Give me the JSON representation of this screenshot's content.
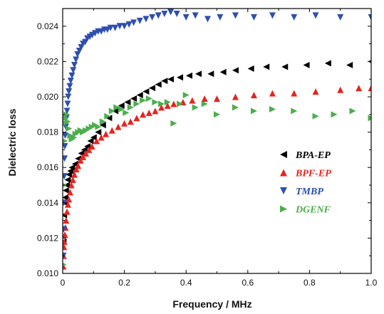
{
  "chart_data": {
    "type": "scatter",
    "title": "",
    "xlabel": "Frequency / MHz",
    "ylabel": "Dielectric loss",
    "xlim": [
      0,
      1.0
    ],
    "ylim": [
      0.01,
      0.025
    ],
    "x_ticks": [
      0.0,
      0.2,
      0.4,
      0.6,
      0.8,
      1.0
    ],
    "x_tick_labels": [
      "0",
      "0.2",
      "0.4",
      "0.6",
      "0.8",
      "1.0"
    ],
    "y_ticks": [
      0.01,
      0.012,
      0.014,
      0.016,
      0.018,
      0.02,
      0.022,
      0.024
    ],
    "y_tick_labels": [
      "0.010",
      "0.012",
      "0.014",
      "0.016",
      "0.018",
      "0.020",
      "0.022",
      "0.024"
    ],
    "grid": false,
    "legend_position": "center-right",
    "series": [
      {
        "name": "BPA-EP",
        "color": "#000000",
        "marker": "triangle-left",
        "points": [
          [
            0.002,
            0.0118
          ],
          [
            0.004,
            0.0133
          ],
          [
            0.006,
            0.014
          ],
          [
            0.008,
            0.0143
          ],
          [
            0.01,
            0.0147
          ],
          [
            0.013,
            0.015
          ],
          [
            0.016,
            0.0153
          ],
          [
            0.02,
            0.0156
          ],
          [
            0.025,
            0.0158
          ],
          [
            0.03,
            0.016
          ],
          [
            0.04,
            0.0162
          ],
          [
            0.05,
            0.0165
          ],
          [
            0.06,
            0.0168
          ],
          [
            0.07,
            0.017
          ],
          [
            0.08,
            0.0172
          ],
          [
            0.09,
            0.0175
          ],
          [
            0.1,
            0.0177
          ],
          [
            0.115,
            0.018
          ],
          [
            0.13,
            0.0184
          ],
          [
            0.15,
            0.0188
          ],
          [
            0.17,
            0.0192
          ],
          [
            0.19,
            0.0195
          ],
          [
            0.21,
            0.0197
          ],
          [
            0.23,
            0.0199
          ],
          [
            0.25,
            0.0201
          ],
          [
            0.27,
            0.0203
          ],
          [
            0.29,
            0.0205
          ],
          [
            0.31,
            0.0207
          ],
          [
            0.33,
            0.0209
          ],
          [
            0.35,
            0.021
          ],
          [
            0.38,
            0.0211
          ],
          [
            0.41,
            0.0212
          ],
          [
            0.44,
            0.0213
          ],
          [
            0.48,
            0.0213
          ],
          [
            0.52,
            0.0214
          ],
          [
            0.56,
            0.0215
          ],
          [
            0.61,
            0.0216
          ],
          [
            0.66,
            0.0217
          ],
          [
            0.72,
            0.0217
          ],
          [
            0.79,
            0.0218
          ],
          [
            0.86,
            0.0219
          ],
          [
            0.93,
            0.0218
          ],
          [
            1.0,
            0.022
          ]
        ]
      },
      {
        "name": "BPF-EP",
        "color": "#e8231f",
        "marker": "triangle-up",
        "points": [
          [
            0.002,
            0.0104
          ],
          [
            0.003,
            0.011
          ],
          [
            0.004,
            0.0115
          ],
          [
            0.005,
            0.0118
          ],
          [
            0.007,
            0.0122
          ],
          [
            0.009,
            0.0126
          ],
          [
            0.011,
            0.013
          ],
          [
            0.014,
            0.0135
          ],
          [
            0.017,
            0.0139
          ],
          [
            0.02,
            0.0142
          ],
          [
            0.024,
            0.0146
          ],
          [
            0.028,
            0.015
          ],
          [
            0.033,
            0.0153
          ],
          [
            0.038,
            0.0156
          ],
          [
            0.044,
            0.0159
          ],
          [
            0.05,
            0.0161
          ],
          [
            0.058,
            0.0164
          ],
          [
            0.066,
            0.0166
          ],
          [
            0.075,
            0.0168
          ],
          [
            0.085,
            0.017
          ],
          [
            0.095,
            0.0172
          ],
          [
            0.11,
            0.0175
          ],
          [
            0.125,
            0.0177
          ],
          [
            0.14,
            0.0179
          ],
          [
            0.16,
            0.0181
          ],
          [
            0.18,
            0.0183
          ],
          [
            0.2,
            0.0185
          ],
          [
            0.22,
            0.0186
          ],
          [
            0.24,
            0.0188
          ],
          [
            0.26,
            0.019
          ],
          [
            0.28,
            0.0191
          ],
          [
            0.3,
            0.0192
          ],
          [
            0.32,
            0.0194
          ],
          [
            0.34,
            0.0195
          ],
          [
            0.36,
            0.0196
          ],
          [
            0.39,
            0.0197
          ],
          [
            0.42,
            0.0198
          ],
          [
            0.46,
            0.0199
          ],
          [
            0.5,
            0.0199
          ],
          [
            0.56,
            0.02
          ],
          [
            0.62,
            0.0201
          ],
          [
            0.68,
            0.0202
          ],
          [
            0.75,
            0.0202
          ],
          [
            0.82,
            0.0203
          ],
          [
            0.9,
            0.0204
          ],
          [
            0.96,
            0.0205
          ],
          [
            1.0,
            0.0205
          ]
        ]
      },
      {
        "name": "TMBP",
        "color": "#2d4fb0",
        "marker": "triangle-down",
        "points": [
          [
            0.002,
            0.011
          ],
          [
            0.003,
            0.0125
          ],
          [
            0.004,
            0.014
          ],
          [
            0.005,
            0.0155
          ],
          [
            0.006,
            0.0165
          ],
          [
            0.007,
            0.0172
          ],
          [
            0.008,
            0.0178
          ],
          [
            0.01,
            0.0183
          ],
          [
            0.012,
            0.0188
          ],
          [
            0.014,
            0.0192
          ],
          [
            0.016,
            0.0196
          ],
          [
            0.018,
            0.02
          ],
          [
            0.02,
            0.0203
          ],
          [
            0.023,
            0.0206
          ],
          [
            0.026,
            0.0209
          ],
          [
            0.03,
            0.0212
          ],
          [
            0.034,
            0.0215
          ],
          [
            0.038,
            0.0218
          ],
          [
            0.043,
            0.0221
          ],
          [
            0.048,
            0.0224
          ],
          [
            0.054,
            0.0226
          ],
          [
            0.06,
            0.0228
          ],
          [
            0.066,
            0.023
          ],
          [
            0.073,
            0.0231
          ],
          [
            0.08,
            0.0233
          ],
          [
            0.088,
            0.0234
          ],
          [
            0.096,
            0.0235
          ],
          [
            0.105,
            0.0236
          ],
          [
            0.115,
            0.0237
          ],
          [
            0.125,
            0.0237
          ],
          [
            0.135,
            0.0238
          ],
          [
            0.145,
            0.0238
          ],
          [
            0.155,
            0.0239
          ],
          [
            0.17,
            0.0239
          ],
          [
            0.185,
            0.024
          ],
          [
            0.2,
            0.024
          ],
          [
            0.215,
            0.0241
          ],
          [
            0.23,
            0.0242
          ],
          [
            0.25,
            0.0243
          ],
          [
            0.27,
            0.0244
          ],
          [
            0.29,
            0.0245
          ],
          [
            0.31,
            0.0246
          ],
          [
            0.33,
            0.0247
          ],
          [
            0.35,
            0.0248
          ],
          [
            0.37,
            0.0247
          ],
          [
            0.4,
            0.0245
          ],
          [
            0.43,
            0.0246
          ],
          [
            0.47,
            0.0244
          ],
          [
            0.51,
            0.0245
          ],
          [
            0.56,
            0.0246
          ],
          [
            0.62,
            0.0245
          ],
          [
            0.68,
            0.0246
          ],
          [
            0.75,
            0.0245
          ],
          [
            0.82,
            0.0246
          ],
          [
            0.9,
            0.0245
          ],
          [
            1.0,
            0.0245
          ]
        ]
      },
      {
        "name": "DGENF",
        "color": "#4cae4c",
        "marker": "triangle-right",
        "points": [
          [
            0.002,
            0.0105
          ],
          [
            0.004,
            0.015
          ],
          [
            0.006,
            0.0175
          ],
          [
            0.008,
            0.0185
          ],
          [
            0.01,
            0.0188
          ],
          [
            0.013,
            0.019
          ],
          [
            0.016,
            0.0186
          ],
          [
            0.02,
            0.0182
          ],
          [
            0.025,
            0.0178
          ],
          [
            0.03,
            0.0176
          ],
          [
            0.036,
            0.0177
          ],
          [
            0.042,
            0.0179
          ],
          [
            0.05,
            0.018
          ],
          [
            0.058,
            0.0181
          ],
          [
            0.066,
            0.018
          ],
          [
            0.075,
            0.0181
          ],
          [
            0.085,
            0.0182
          ],
          [
            0.095,
            0.0183
          ],
          [
            0.105,
            0.0184
          ],
          [
            0.115,
            0.0183
          ],
          [
            0.13,
            0.0186
          ],
          [
            0.145,
            0.0189
          ],
          [
            0.16,
            0.0192
          ],
          [
            0.175,
            0.0194
          ],
          [
            0.19,
            0.0193
          ],
          [
            0.205,
            0.0191
          ],
          [
            0.22,
            0.0194
          ],
          [
            0.24,
            0.0196
          ],
          [
            0.26,
            0.0198
          ],
          [
            0.28,
            0.0199
          ],
          [
            0.3,
            0.0197
          ],
          [
            0.32,
            0.0196
          ],
          [
            0.34,
            0.0197
          ],
          [
            0.36,
            0.0185
          ],
          [
            0.38,
            0.0196
          ],
          [
            0.4,
            0.0201
          ],
          [
            0.43,
            0.0194
          ],
          [
            0.46,
            0.0196
          ],
          [
            0.5,
            0.019
          ],
          [
            0.56,
            0.0194
          ],
          [
            0.62,
            0.0192
          ],
          [
            0.68,
            0.0193
          ],
          [
            0.75,
            0.0192
          ],
          [
            0.82,
            0.0189
          ],
          [
            0.88,
            0.019
          ],
          [
            0.94,
            0.0192
          ],
          [
            1.0,
            0.0188
          ]
        ]
      }
    ]
  }
}
